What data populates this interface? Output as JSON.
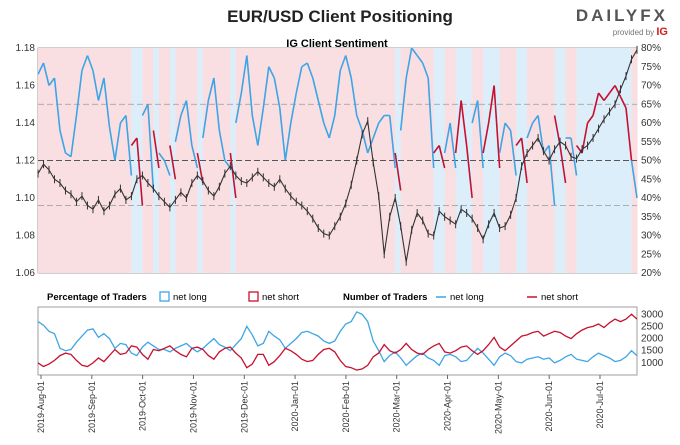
{
  "title": "EUR/USD Client Positioning",
  "brand": {
    "logo_text": "DAILYFX",
    "provided_by": "provided by",
    "provider": "IG"
  },
  "colors": {
    "net_long": "#3da5e6",
    "net_short": "#c8102e",
    "price": "#333333",
    "long_zone": "#ddeefb",
    "short_zone": "#fadfe2"
  },
  "chart_data": [
    {
      "type": "line",
      "title": "IG Client Sentiment",
      "y_left_ticks": [
        "1.18",
        "1.16",
        "1.14",
        "1.12",
        "1.10",
        "1.08",
        "1.06"
      ],
      "y_right_ticks": [
        "80%",
        "75%",
        "70%",
        "65%",
        "60%",
        "55%",
        "50%",
        "45%",
        "40%",
        "35%",
        "30%",
        "25%",
        "20%"
      ],
      "ylim_price": [
        1.06,
        1.18
      ],
      "ylim_pct": [
        20,
        80
      ],
      "series": [
        {
          "name": "net long",
          "key": "long_pct",
          "values": [
            73,
            76,
            70,
            72,
            58,
            52,
            51,
            62,
            74,
            78,
            74,
            66,
            72,
            59,
            50,
            60,
            62,
            46,
            44,
            62,
            65,
            42,
            52,
            50,
            46,
            55,
            62,
            66,
            54,
            48,
            56,
            66,
            72,
            58,
            50,
            48,
            60,
            68,
            78,
            62,
            54,
            64,
            75,
            72,
            64,
            50,
            60,
            68,
            75,
            76,
            72,
            66,
            60,
            56,
            62,
            74,
            78,
            72,
            62,
            58,
            52,
            56,
            60,
            62,
            62,
            48,
            58,
            72,
            80,
            78,
            76,
            72,
            48,
            46,
            52,
            60,
            48,
            34,
            46,
            60,
            66,
            48,
            40,
            30,
            52,
            60,
            58,
            46,
            44,
            56,
            60,
            62,
            52,
            54,
            38,
            46,
            56,
            56,
            46,
            48,
            40,
            38,
            32,
            34,
            32,
            30,
            33,
            36,
            50,
            40
          ]
        },
        {
          "name": "net short",
          "key": "short_pct",
          "values": [
            27,
            24,
            30,
            28,
            42,
            48,
            49,
            38,
            26,
            22,
            26,
            34,
            28,
            41,
            50,
            40,
            38,
            54,
            56,
            38,
            35,
            58,
            48,
            50,
            54,
            45,
            38,
            34,
            46,
            52,
            44,
            34,
            28,
            42,
            50,
            52,
            40,
            32,
            22,
            38,
            46,
            36,
            25,
            28,
            36,
            50,
            40,
            32,
            25,
            24,
            28,
            34,
            40,
            44,
            38,
            26,
            22,
            28,
            38,
            42,
            48,
            44,
            40,
            38,
            38,
            52,
            42,
            28,
            20,
            22,
            24,
            28,
            52,
            54,
            48,
            40,
            52,
            66,
            54,
            40,
            34,
            52,
            60,
            70,
            48,
            40,
            42,
            54,
            56,
            44,
            40,
            38,
            48,
            46,
            62,
            54,
            44,
            44,
            54,
            52,
            60,
            62,
            68,
            66,
            68,
            70,
            67,
            64,
            50,
            60
          ]
        },
        {
          "name": "EUR/USD",
          "key": "price",
          "values": [
            1.113,
            1.118,
            1.115,
            1.11,
            1.108,
            1.104,
            1.102,
            1.098,
            1.101,
            1.096,
            1.094,
            1.099,
            1.093,
            1.096,
            1.102,
            1.105,
            1.099,
            1.101,
            1.11,
            1.112,
            1.108,
            1.105,
            1.101,
            1.098,
            1.095,
            1.099,
            1.103,
            1.1,
            1.108,
            1.112,
            1.109,
            1.104,
            1.101,
            1.106,
            1.113,
            1.117,
            1.112,
            1.109,
            1.108,
            1.111,
            1.114,
            1.111,
            1.108,
            1.106,
            1.11,
            1.105,
            1.101,
            1.098,
            1.096,
            1.093,
            1.089,
            1.084,
            1.081,
            1.08,
            1.085,
            1.09,
            1.097,
            1.107,
            1.12,
            1.134,
            1.141,
            1.119,
            1.101,
            1.07,
            1.09,
            1.1,
            1.085,
            1.066,
            1.083,
            1.092,
            1.088,
            1.081,
            1.08,
            1.093,
            1.09,
            1.088,
            1.086,
            1.094,
            1.092,
            1.089,
            1.084,
            1.078,
            1.086,
            1.092,
            1.084,
            1.085,
            1.091,
            1.1,
            1.117,
            1.124,
            1.128,
            1.132,
            1.125,
            1.12,
            1.126,
            1.13,
            1.128,
            1.122,
            1.121,
            1.126,
            1.128,
            1.132,
            1.137,
            1.142,
            1.146,
            1.15,
            1.158,
            1.165,
            1.174,
            1.179
          ]
        }
      ]
    },
    {
      "type": "line",
      "title": "Number of Traders",
      "y_ticks": [
        "3000",
        "2500",
        "2000",
        "1500",
        "1000"
      ],
      "ylim": [
        500,
        3300
      ],
      "series": [
        {
          "name": "net long",
          "key": "long_count",
          "values": [
            2700,
            2550,
            2300,
            2200,
            1600,
            1500,
            1550,
            1850,
            2100,
            2350,
            2400,
            2050,
            2200,
            2000,
            1600,
            1800,
            1750,
            1400,
            1300,
            1650,
            1850,
            1700,
            1550,
            1550,
            1450,
            1600,
            1700,
            1800,
            1600,
            1450,
            1600,
            1800,
            2000,
            1750,
            1650,
            1500,
            1750,
            2000,
            2500,
            2150,
            1700,
            1800,
            2300,
            2100,
            1950,
            1600,
            1800,
            2000,
            2250,
            2300,
            2200,
            2100,
            1900,
            1800,
            1900,
            2300,
            2600,
            2700,
            3100,
            3000,
            2700,
            1900,
            1500,
            1050,
            1300,
            1450,
            1200,
            900,
            1100,
            1300,
            1400,
            1200,
            1100,
            900,
            1300,
            1350,
            1250,
            1050,
            1100,
            1350,
            1600,
            1400,
            1150,
            900,
            1250,
            1400,
            1300,
            1050,
            1000,
            1150,
            1200,
            1250,
            1150,
            1200,
            1000,
            1100,
            1250,
            1350,
            1150,
            1100,
            1050,
            1250,
            1400,
            1300,
            1200,
            1050,
            1100,
            1250,
            1500,
            1300
          ]
        },
        {
          "name": "net short",
          "key": "short_count",
          "values": [
            1000,
            850,
            950,
            1100,
            1300,
            1400,
            1350,
            1100,
            900,
            850,
            1000,
            1200,
            1050,
            1300,
            1550,
            1350,
            1400,
            1700,
            1650,
            1350,
            1150,
            1550,
            1500,
            1600,
            1700,
            1500,
            1350,
            1250,
            1600,
            1650,
            1550,
            1300,
            1150,
            1450,
            1600,
            1650,
            1400,
            1200,
            800,
            950,
            1350,
            1350,
            900,
            1050,
            1300,
            1600,
            1500,
            1350,
            1150,
            1050,
            1100,
            1350,
            1550,
            1600,
            1450,
            1100,
            850,
            800,
            700,
            750,
            900,
            1250,
            1400,
            1750,
            1500,
            1400,
            1550,
            1800,
            1550,
            1400,
            1350,
            1550,
            1700,
            1800,
            1450,
            1400,
            1500,
            1650,
            1700,
            1500,
            1350,
            1500,
            1750,
            2050,
            1650,
            1500,
            1700,
            1900,
            2100,
            2150,
            2250,
            2300,
            2100,
            2200,
            2300,
            2250,
            2100,
            2000,
            2200,
            2350,
            2450,
            2500,
            2600,
            2450,
            2650,
            2800,
            2700,
            2800,
            3000,
            2800
          ]
        }
      ]
    }
  ],
  "x_axis": {
    "ticks": [
      "2019-Aug-01",
      "2019-Sep-01",
      "2019-Oct-01",
      "2019-Nov-01",
      "2019-Dec-01",
      "2020-Jan-01",
      "2020-Feb-01",
      "2020-Mar-01",
      "2020-Apr-01",
      "2020-May-01",
      "2020-Jun-01",
      "2020-Jul-01"
    ]
  },
  "legend": {
    "pct_title": "Percentage of Traders",
    "pct_long": "net long",
    "pct_short": "net short",
    "count_title": "Number of Traders",
    "count_long": "net long",
    "count_short": "net short"
  }
}
